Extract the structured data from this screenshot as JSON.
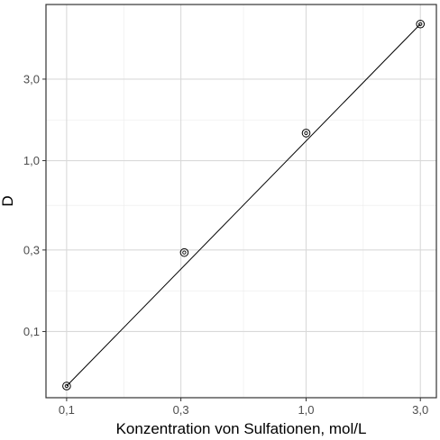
{
  "chart_data": {
    "type": "scatter",
    "title": "",
    "xlabel": "Konzentration von Sulfationen, mol/L",
    "ylabel": "D",
    "x_scale": "log",
    "y_scale": "log",
    "xlim": [
      0.082,
      3.5
    ],
    "ylim": [
      0.041,
      8.2
    ],
    "x_ticks": [
      0.1,
      0.3,
      1.0,
      3.0
    ],
    "x_tick_labels": [
      "0,1",
      "0,3",
      "1,0",
      "3,0"
    ],
    "y_ticks": [
      0.1,
      0.3,
      1.0,
      3.0
    ],
    "y_tick_labels": [
      "0,1",
      "0,3",
      "1,0",
      "3,0"
    ],
    "grid": true,
    "legend": "none",
    "series": [
      {
        "points": [
          {
            "x": 0.1,
            "y": 0.048
          },
          {
            "x": 0.31,
            "y": 0.29
          },
          {
            "x": 1.0,
            "y": 1.45
          },
          {
            "x": 3.0,
            "y": 6.3
          }
        ]
      }
    ],
    "fit_line": {
      "from": {
        "x": 0.1,
        "y": 0.048
      },
      "to": {
        "x": 3.0,
        "y": 6.3
      }
    }
  }
}
